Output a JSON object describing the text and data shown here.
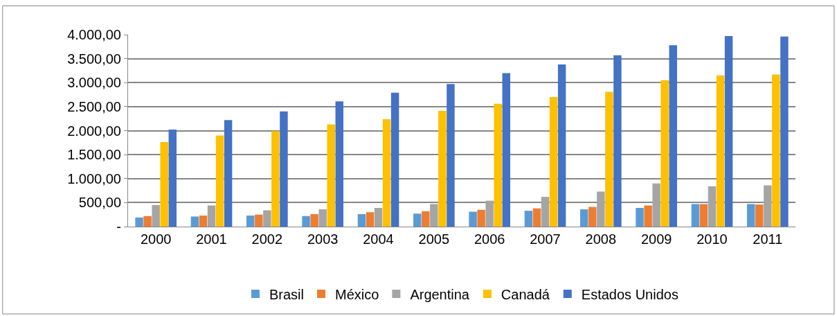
{
  "chart_data": {
    "type": "bar",
    "categories": [
      "2000",
      "2001",
      "2002",
      "2003",
      "2004",
      "2005",
      "2006",
      "2007",
      "2008",
      "2009",
      "2010",
      "2011"
    ],
    "series": [
      {
        "name": "Brasil",
        "color": "#5b9bd5",
        "values": [
          190,
          210,
          230,
          220,
          260,
          270,
          310,
          330,
          360,
          390,
          470,
          470
        ]
      },
      {
        "name": "México",
        "color": "#ed7d31",
        "values": [
          220,
          230,
          250,
          260,
          300,
          320,
          350,
          380,
          410,
          440,
          470,
          460
        ]
      },
      {
        "name": "Argentina",
        "color": "#a5a5a5",
        "values": [
          450,
          440,
          340,
          360,
          390,
          470,
          540,
          620,
          730,
          900,
          840,
          860
        ]
      },
      {
        "name": "Canadá",
        "color": "#ffc000",
        "values": [
          1760,
          1900,
          1990,
          2130,
          2240,
          2410,
          2560,
          2700,
          2810,
          3050,
          3150,
          3170
        ]
      },
      {
        "name": "Estados Unidos",
        "color": "#4472c4",
        "values": [
          2020,
          2220,
          2400,
          2610,
          2790,
          2970,
          3200,
          3380,
          3570,
          3780,
          3970,
          3960
        ]
      }
    ],
    "ylim": [
      0,
      4000
    ],
    "yticks": [
      {
        "value": 0,
        "label": "-"
      },
      {
        "value": 500,
        "label": "500,00"
      },
      {
        "value": 1000,
        "label": "1.000,00"
      },
      {
        "value": 1500,
        "label": "1.500,00"
      },
      {
        "value": 2000,
        "label": "2.000,00"
      },
      {
        "value": 2500,
        "label": "2.500,00"
      },
      {
        "value": 3000,
        "label": "3.000,00"
      },
      {
        "value": 3500,
        "label": "3.500,00"
      },
      {
        "value": 4000,
        "label": "4.000,00"
      }
    ],
    "grid": "y",
    "legend": "bottom"
  }
}
